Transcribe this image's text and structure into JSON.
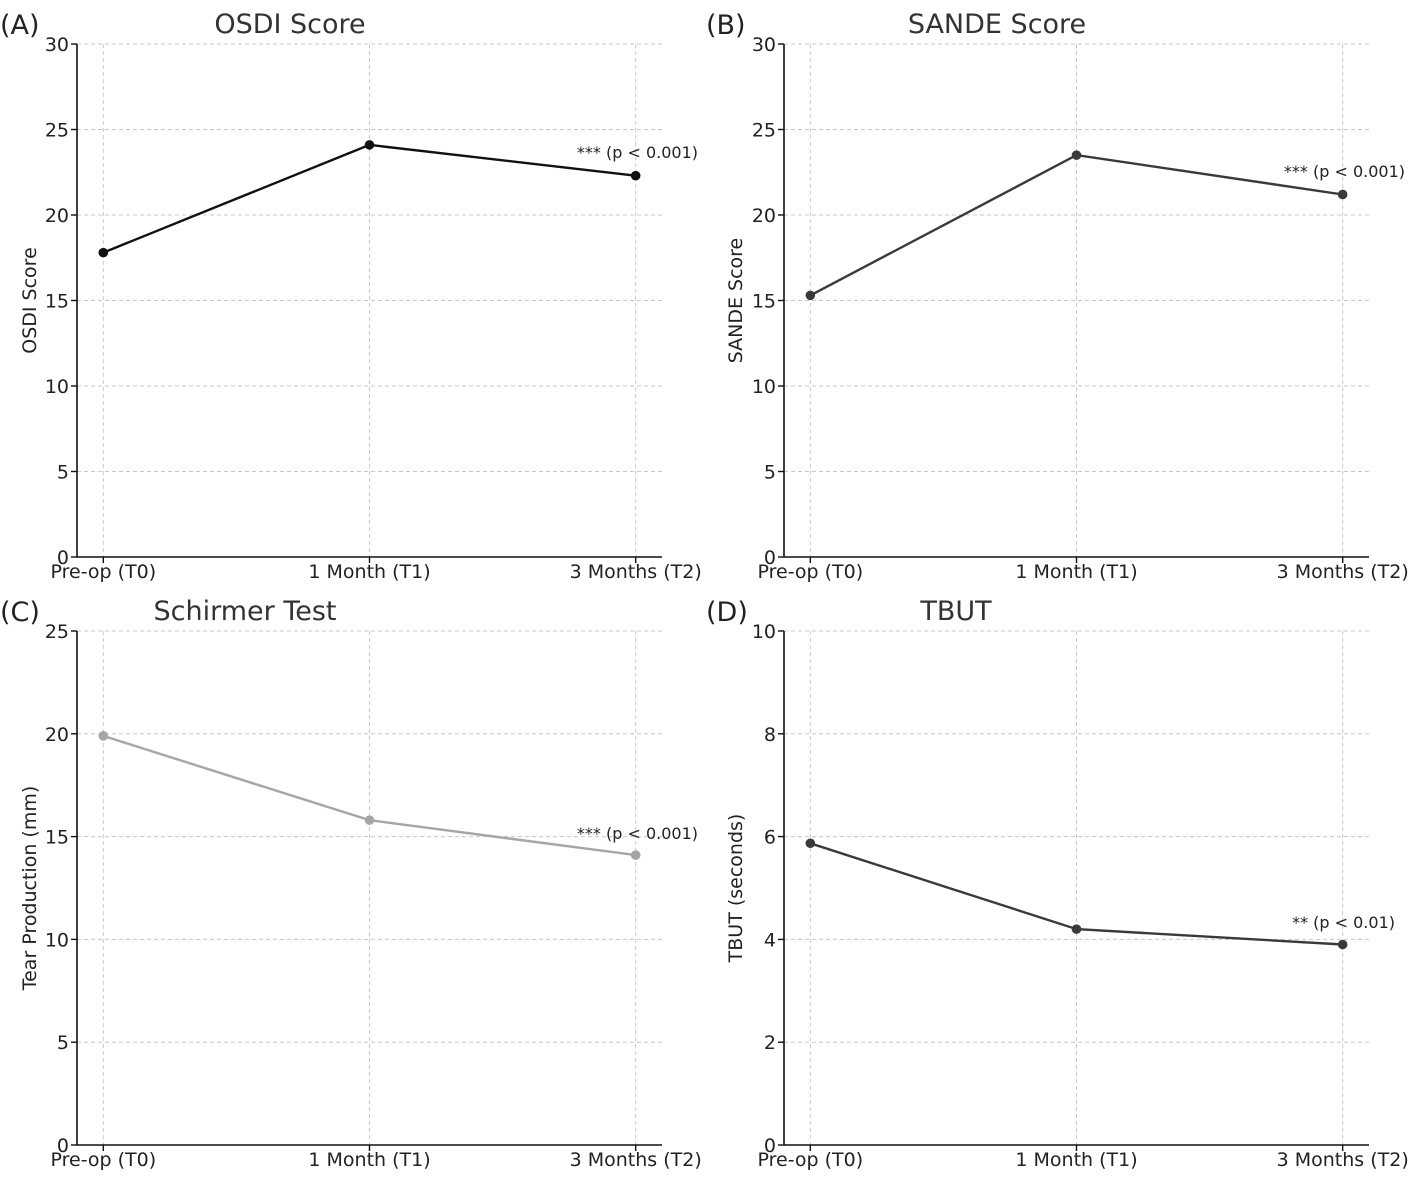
{
  "chart_data": [
    {
      "panel": "(A)",
      "type": "line",
      "title": "OSDI Score",
      "ylabel": "OSDI Score",
      "categories": [
        "Pre-op (T0)",
        "1 Month (T1)",
        "3 Months (T2)"
      ],
      "values": [
        17.8,
        24.1,
        22.3
      ],
      "ylim": [
        0,
        30
      ],
      "yticks": [
        0,
        5,
        10,
        15,
        20,
        25,
        30
      ],
      "grid": true,
      "color": "#111111",
      "annotation": "*** (p < 0.001)"
    },
    {
      "panel": "(B)",
      "type": "line",
      "title": "SANDE Score",
      "ylabel": "SANDE Score",
      "categories": [
        "Pre-op (T0)",
        "1 Month (T1)",
        "3 Months (T2)"
      ],
      "values": [
        15.3,
        23.5,
        21.2
      ],
      "ylim": [
        0,
        30
      ],
      "yticks": [
        0,
        5,
        10,
        15,
        20,
        25,
        30
      ],
      "grid": true,
      "color": "#3a3a3a",
      "annotation": "*** (p < 0.001)"
    },
    {
      "panel": "(C)",
      "type": "line",
      "title": "Schirmer Test",
      "ylabel": "Tear Production (mm)",
      "categories": [
        "Pre-op (T0)",
        "1 Month (T1)",
        "3 Months (T2)"
      ],
      "values": [
        19.9,
        15.8,
        14.1
      ],
      "ylim": [
        0,
        25
      ],
      "yticks": [
        0,
        5,
        10,
        15,
        20,
        25
      ],
      "grid": true,
      "color": "#a6a6a6",
      "annotation": "*** (p < 0.001)"
    },
    {
      "panel": "(D)",
      "type": "line",
      "title": "TBUT",
      "ylabel": "TBUT (seconds)",
      "categories": [
        "Pre-op (T0)",
        "1 Month (T1)",
        "3 Months (T2)"
      ],
      "values": [
        5.87,
        4.2,
        3.9
      ],
      "ylim": [
        0,
        10
      ],
      "yticks": [
        0,
        2,
        4,
        6,
        8,
        10
      ],
      "grid": true,
      "color": "#3a3a3a",
      "annotation": "** (p < 0.01)"
    }
  ]
}
